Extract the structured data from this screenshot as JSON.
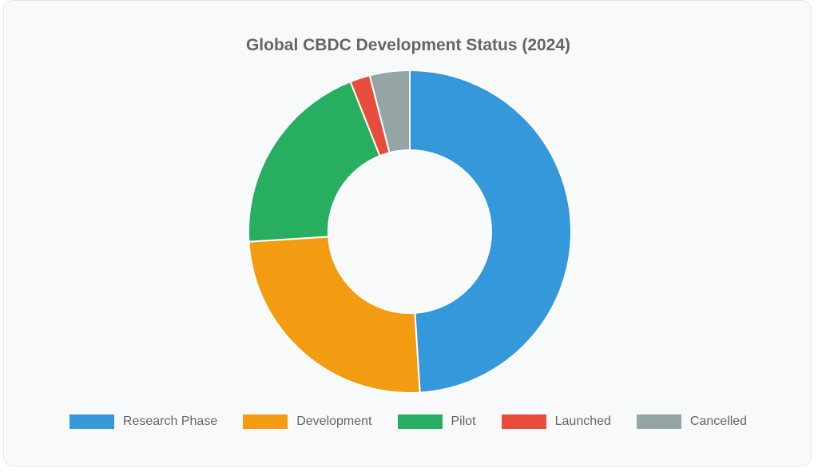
{
  "chart_data": {
    "type": "pie",
    "title": "Global CBDC Development Status (2024)",
    "categories": [
      "Research Phase",
      "Development",
      "Pilot",
      "Launched",
      "Cancelled"
    ],
    "values": [
      49,
      25,
      20,
      2,
      4
    ],
    "colors": [
      "#3498db",
      "#f39c12",
      "#27ae60",
      "#e74c3c",
      "#95a5a6"
    ],
    "legend_position": "bottom",
    "donut": true
  }
}
